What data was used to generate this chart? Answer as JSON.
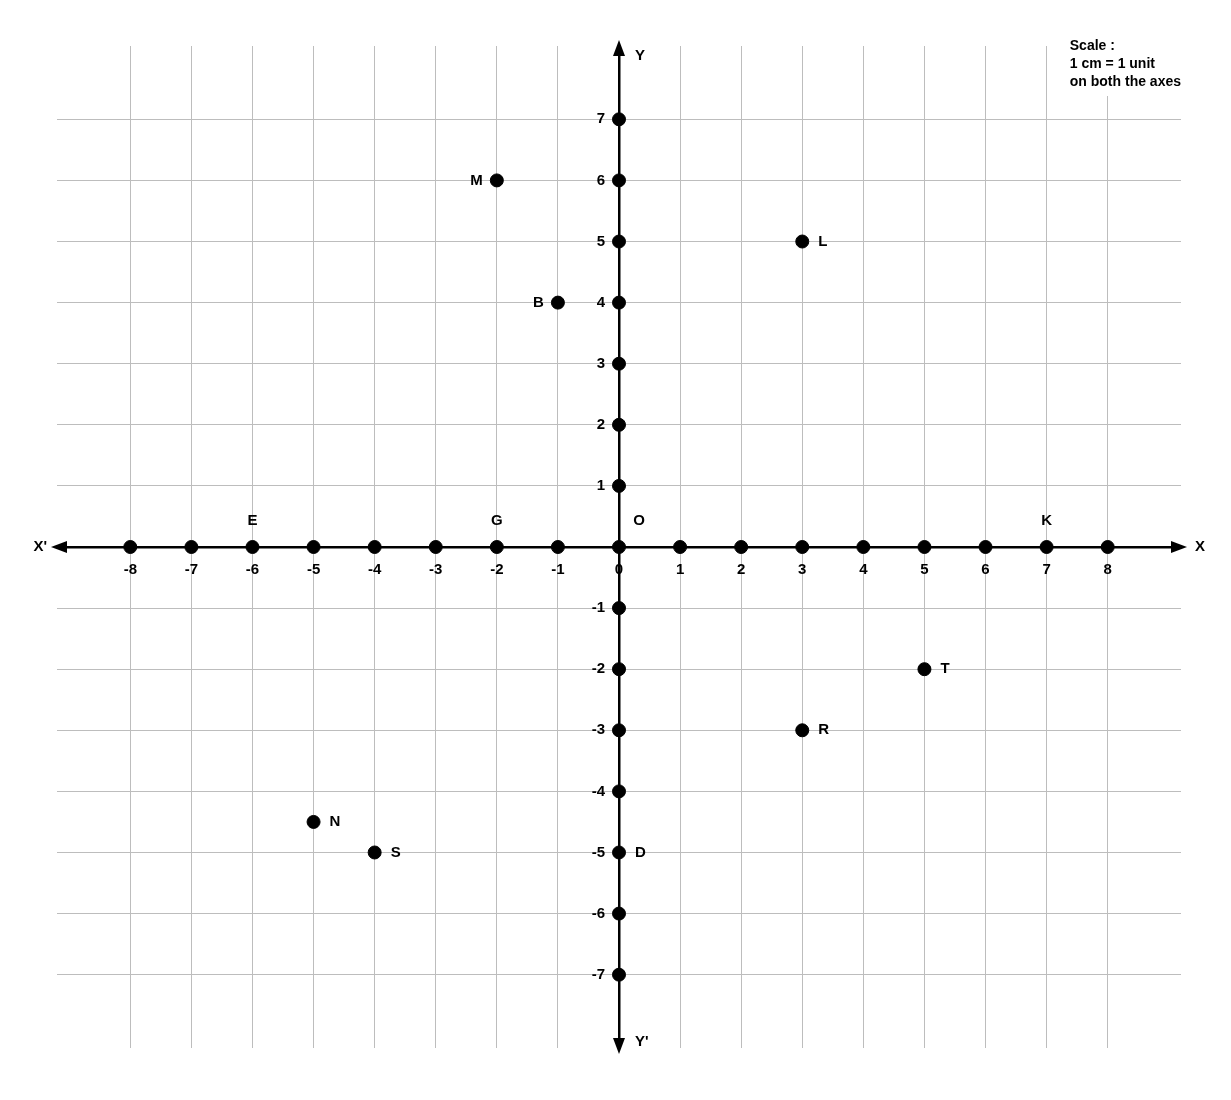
{
  "chart_data": {
    "type": "scatter",
    "xlabel": "X",
    "ylabel": "Y",
    "annotations": [
      "X'",
      "Y'",
      "Scale :\n1 cm = 1 unit\non both the axes"
    ],
    "xlim": [
      -9.2,
      9.2
    ],
    "ylim": [
      -8.2,
      8.2
    ],
    "xticks": [
      -8,
      -7,
      -6,
      -5,
      -4,
      -3,
      -2,
      -1,
      0,
      1,
      2,
      3,
      4,
      5,
      6,
      7,
      8
    ],
    "yticks": [
      -7,
      -6,
      -5,
      -4,
      -3,
      -2,
      -1,
      {
        "value": 0,
        "label": null
      },
      1,
      2,
      3,
      4,
      5,
      6,
      7
    ],
    "grid": true,
    "marker": "circle",
    "series": [
      {
        "color": "#000000",
        "x": [
          -2,
          3,
          -1,
          -6,
          -2,
          0,
          7,
          5,
          3,
          -5,
          -4,
          0
        ],
        "values": [
          6,
          5,
          4,
          0,
          0,
          0,
          0,
          -2,
          -3,
          -4.5,
          -5,
          -5
        ],
        "value_labels": [
          "M",
          "L",
          "B",
          "E",
          "G",
          "O",
          "K",
          "T",
          "R",
          "N",
          "S",
          "D"
        ]
      },
      {
        "color": "#000000",
        "x": [
          -8,
          -7,
          -5,
          -4,
          -3,
          -1,
          1,
          2,
          3,
          4,
          5,
          6,
          8,
          0,
          0,
          0,
          0,
          0,
          0,
          0,
          0,
          0,
          0,
          0,
          0,
          0
        ],
        "values": [
          0,
          0,
          0,
          0,
          0,
          0,
          0,
          0,
          0,
          0,
          0,
          0,
          0,
          7,
          6,
          5,
          4,
          3,
          2,
          1,
          -1,
          -2,
          -3,
          -4,
          -6,
          -7
        ]
      }
    ]
  }
}
